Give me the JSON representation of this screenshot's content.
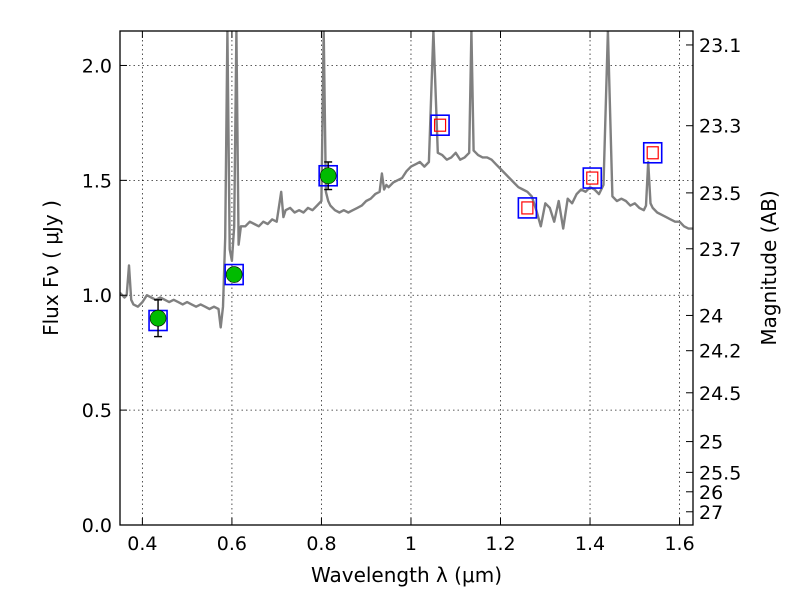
{
  "chart_data": {
    "type": "scatter",
    "title": "",
    "xlabel": "Wavelength  λ (μm)",
    "ylabel": "Flux  Fν  ( μJy )",
    "y2label": "Magnitude (AB)",
    "xlim": [
      0.35,
      1.63
    ],
    "ylim": [
      0.0,
      2.15
    ],
    "grid": true,
    "x_ticks": [
      {
        "value": 0.4,
        "label": "0.4"
      },
      {
        "value": 0.6,
        "label": "0.6"
      },
      {
        "value": 0.8,
        "label": "0.8"
      },
      {
        "value": 1.0,
        "label": "1"
      },
      {
        "value": 1.2,
        "label": "1.2"
      },
      {
        "value": 1.4,
        "label": "1.4"
      },
      {
        "value": 1.6,
        "label": "1.6"
      }
    ],
    "y_ticks": [
      {
        "value": 0.0,
        "label": "0.0"
      },
      {
        "value": 0.5,
        "label": "0.5"
      },
      {
        "value": 1.0,
        "label": "1.0"
      },
      {
        "value": 1.5,
        "label": "1.5"
      },
      {
        "value": 2.0,
        "label": "2.0"
      }
    ],
    "mag_ticks": [
      {
        "value": 23.1,
        "label": "23.1"
      },
      {
        "value": 23.3,
        "label": "23.3"
      },
      {
        "value": 23.5,
        "label": "23.5"
      },
      {
        "value": 23.7,
        "label": "23.7"
      },
      {
        "value": 24.0,
        "label": "24"
      },
      {
        "value": 24.2,
        "label": "24.2"
      },
      {
        "value": 24.5,
        "label": "24.5"
      },
      {
        "value": 25.0,
        "label": "25"
      },
      {
        "value": 25.5,
        "label": "25.5"
      },
      {
        "value": 26.0,
        "label": "26"
      },
      {
        "value": 27.0,
        "label": "27"
      }
    ],
    "series": [
      {
        "type": "line",
        "color": "#808080",
        "x": [
          0.35,
          0.36,
          0.365,
          0.37,
          0.375,
          0.38,
          0.39,
          0.4,
          0.41,
          0.42,
          0.43,
          0.44,
          0.45,
          0.46,
          0.47,
          0.48,
          0.49,
          0.5,
          0.51,
          0.52,
          0.53,
          0.54,
          0.55,
          0.56,
          0.57,
          0.575,
          0.58,
          0.585,
          0.59,
          0.595,
          0.6,
          0.605,
          0.61,
          0.615,
          0.62,
          0.63,
          0.64,
          0.65,
          0.66,
          0.67,
          0.68,
          0.69,
          0.7,
          0.71,
          0.715,
          0.72,
          0.73,
          0.74,
          0.75,
          0.76,
          0.77,
          0.78,
          0.79,
          0.8,
          0.805,
          0.81,
          0.815,
          0.82,
          0.83,
          0.84,
          0.85,
          0.86,
          0.87,
          0.88,
          0.89,
          0.9,
          0.91,
          0.92,
          0.93,
          0.935,
          0.94,
          0.945,
          0.95,
          0.96,
          0.97,
          0.98,
          0.99,
          1.0,
          1.01,
          1.02,
          1.03,
          1.04,
          1.05,
          1.06,
          1.07,
          1.08,
          1.09,
          1.1,
          1.11,
          1.12,
          1.13,
          1.135,
          1.14,
          1.145,
          1.15,
          1.16,
          1.17,
          1.18,
          1.19,
          1.2,
          1.21,
          1.22,
          1.23,
          1.24,
          1.25,
          1.26,
          1.27,
          1.28,
          1.29,
          1.3,
          1.31,
          1.32,
          1.33,
          1.34,
          1.35,
          1.36,
          1.37,
          1.38,
          1.39,
          1.4,
          1.41,
          1.42,
          1.43,
          1.44,
          1.45,
          1.46,
          1.47,
          1.48,
          1.49,
          1.5,
          1.51,
          1.52,
          1.525,
          1.53,
          1.535,
          1.54,
          1.55,
          1.56,
          1.57,
          1.58,
          1.59,
          1.6,
          1.61,
          1.62,
          1.63
        ],
        "y": [
          1.01,
          0.99,
          1.0,
          1.13,
          0.98,
          0.96,
          0.95,
          0.97,
          1.0,
          0.99,
          0.98,
          0.99,
          0.98,
          0.97,
          0.98,
          0.97,
          0.96,
          0.97,
          0.96,
          0.95,
          0.96,
          0.95,
          0.94,
          0.95,
          0.94,
          0.86,
          0.95,
          1.25,
          2.15,
          1.2,
          1.15,
          1.3,
          2.15,
          1.22,
          1.3,
          1.3,
          1.32,
          1.31,
          1.3,
          1.32,
          1.31,
          1.33,
          1.32,
          1.45,
          1.34,
          1.37,
          1.38,
          1.36,
          1.37,
          1.36,
          1.38,
          1.37,
          1.39,
          1.41,
          2.15,
          1.45,
          1.41,
          1.39,
          1.37,
          1.36,
          1.37,
          1.36,
          1.37,
          1.38,
          1.39,
          1.41,
          1.42,
          1.44,
          1.45,
          1.53,
          1.46,
          1.48,
          1.47,
          1.49,
          1.5,
          1.51,
          1.54,
          1.56,
          1.57,
          1.58,
          1.56,
          1.58,
          2.15,
          1.62,
          1.61,
          1.59,
          1.6,
          1.62,
          1.59,
          1.6,
          1.62,
          2.15,
          1.63,
          1.62,
          1.61,
          1.6,
          1.6,
          1.59,
          1.57,
          1.55,
          1.53,
          1.51,
          1.49,
          1.47,
          1.46,
          1.45,
          1.43,
          1.37,
          1.3,
          1.4,
          1.38,
          1.32,
          1.41,
          1.29,
          1.42,
          1.4,
          1.44,
          1.46,
          1.45,
          1.47,
          1.46,
          1.44,
          1.48,
          2.15,
          1.43,
          1.41,
          1.42,
          1.41,
          1.39,
          1.4,
          1.38,
          1.37,
          1.39,
          1.58,
          1.4,
          1.38,
          1.36,
          1.35,
          1.34,
          1.33,
          1.32,
          1.32,
          1.3,
          1.29,
          1.29
        ]
      },
      {
        "name": "",
        "type": "model_boxes",
        "marker": "square-open",
        "color": "#0000ff",
        "x": [
          0.435,
          0.605,
          0.815,
          1.065,
          1.26,
          1.405,
          1.54
        ],
        "y": [
          0.89,
          1.09,
          1.52,
          1.74,
          1.38,
          1.51,
          1.62
        ]
      },
      {
        "name": "",
        "type": "upper_limits",
        "marker": "square-open",
        "color": "#ff0000",
        "x": [
          1.065,
          1.26,
          1.405,
          1.54
        ],
        "y": [
          1.74,
          1.38,
          1.51,
          1.62
        ]
      },
      {
        "name": "",
        "type": "detections",
        "marker": "circle-filled",
        "color": "#00bb00",
        "x": [
          0.435,
          0.605,
          0.815
        ],
        "y": [
          0.9,
          1.09,
          1.52
        ],
        "yerr": [
          0.08,
          0.03,
          0.06
        ]
      }
    ]
  }
}
